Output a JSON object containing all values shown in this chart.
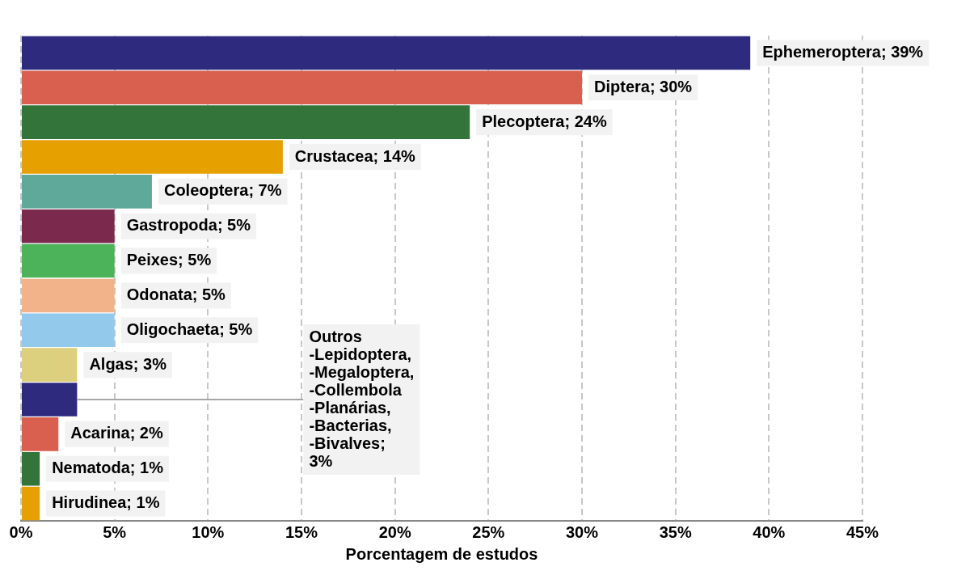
{
  "chart_data": {
    "type": "bar",
    "orientation": "horizontal",
    "xlabel": "Porcentagem de estudos",
    "categories": [
      null,
      null,
      null,
      null,
      null,
      null,
      null,
      null,
      null,
      null,
      null,
      null,
      null,
      null
    ],
    "values": [
      39,
      30,
      24,
      14,
      7,
      5,
      5,
      5,
      5,
      3,
      3,
      2,
      1,
      1
    ],
    "colors": [
      "#2e2a7e",
      "#d9604e",
      "#32743a",
      "#e6a000",
      "#5ea99a",
      "#7b2a4e",
      "#4db35a",
      "#f2b28a",
      "#93c9ea",
      "#dccf7d",
      "#2e2a7e",
      "#d9604e",
      "#32743a",
      "#e6a000"
    ],
    "value_labels": [
      "Ephemeroptera; 39%",
      "Diptera; 30%",
      "Plecoptera; 24%",
      "Crustacea; 14%",
      "Coleoptera; 7%",
      "Gastropoda; 5%",
      "Peixes; 5%",
      "Odonata; 5%",
      "Oligochaeta; 5%",
      "Algas; 3%",
      "Outros\n-Lepidoptera,\n-Megaloptera,\n-Collembola\n-Planárias,\n-Bacterias,\n-Bivalves;\n3%",
      "Acarina; 2%",
      "Nematoda; 1%",
      "Hirudinea; 1%"
    ],
    "xlim": [
      0,
      45
    ],
    "xticks": [
      {
        "value": 0,
        "label": "0%"
      },
      {
        "value": 5,
        "label": "5%"
      },
      {
        "value": 10,
        "label": "10%"
      },
      {
        "value": 15,
        "label": "15%"
      },
      {
        "value": 20,
        "label": "20%"
      },
      {
        "value": 25,
        "label": "25%"
      },
      {
        "value": 30,
        "label": "30%"
      },
      {
        "value": 35,
        "label": "35%"
      },
      {
        "value": 40,
        "label": "40%"
      },
      {
        "value": 45,
        "label": "45%"
      }
    ],
    "grid": "x",
    "legend": false
  }
}
